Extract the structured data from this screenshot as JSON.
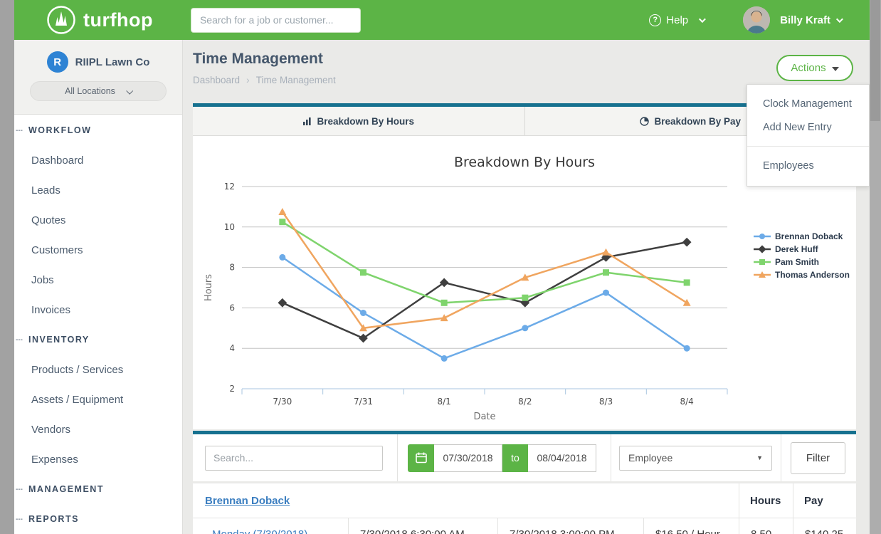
{
  "navbar": {
    "brand": "turfhop",
    "search_placeholder": "Search for a job or customer...",
    "help_label": "Help",
    "user_name": "Billy Kraft"
  },
  "sidebar": {
    "company": "RIIPL Lawn Co",
    "company_initial": "R",
    "location_filter": "All Locations",
    "sections": [
      {
        "label": "WORKFLOW",
        "items": [
          "Dashboard",
          "Leads",
          "Quotes",
          "Customers",
          "Jobs",
          "Invoices"
        ]
      },
      {
        "label": "INVENTORY",
        "items": [
          "Products / Services",
          "Assets / Equipment",
          "Vendors",
          "Expenses"
        ]
      },
      {
        "label": "MANAGEMENT",
        "items": []
      },
      {
        "label": "REPORTS",
        "items": []
      }
    ]
  },
  "header": {
    "title": "Time Management",
    "breadcrumb": [
      "Dashboard",
      "Time Management"
    ],
    "actions_label": "Actions"
  },
  "actions_menu": {
    "groups": [
      [
        "Clock Management",
        "Add New Entry"
      ],
      [
        "Employees"
      ]
    ]
  },
  "tabs": [
    {
      "label": "Breakdown By Hours",
      "icon": "bar-chart-icon",
      "active": true
    },
    {
      "label": "Breakdown By Pay",
      "icon": "clock-icon",
      "active": false
    }
  ],
  "chart_data": {
    "type": "line",
    "title": "Breakdown By Hours",
    "xlabel": "Date",
    "ylabel": "Hours",
    "categories": [
      "7/30",
      "7/31",
      "8/1",
      "8/2",
      "8/3",
      "8/4"
    ],
    "series": [
      {
        "name": "Brennan Doback",
        "color": "#6cabe8",
        "marker": "circle",
        "values": [
          8.5,
          5.75,
          3.5,
          5,
          6.75,
          4
        ]
      },
      {
        "name": "Derek Huff",
        "color": "#3f3f3f",
        "marker": "diamond",
        "values": [
          6.25,
          4.5,
          7.25,
          6.25,
          8.5,
          9.25
        ]
      },
      {
        "name": "Pam Smith",
        "color": "#7fd46d",
        "marker": "square",
        "values": [
          10.25,
          7.75,
          6.25,
          6.5,
          7.75,
          7.25
        ]
      },
      {
        "name": "Thomas Anderson",
        "color": "#f0a55f",
        "marker": "triangle",
        "values": [
          10.75,
          5,
          5.5,
          7.5,
          8.75,
          6.25
        ]
      }
    ],
    "ylim": [
      2,
      12
    ],
    "ytick_step": 2,
    "grid": true,
    "legend_position": "right"
  },
  "filters": {
    "search_placeholder": "Search...",
    "date_from": "07/30/2018",
    "to_label": "to",
    "date_to": "08/04/2018",
    "employee_label": "Employee",
    "filter_button": "Filter"
  },
  "table": {
    "group_link": "Brennan Doback",
    "columns": [
      "Hours",
      "Pay"
    ],
    "rows": [
      {
        "toggle": "-",
        "day": "Monday (7/30/2018)",
        "start": "7/30/2018 6:30:00 AM",
        "end": "7/30/2018 3:00:00 PM",
        "rate": "$16.50 / Hour",
        "hours": "8.50",
        "pay": "$140.25"
      }
    ]
  },
  "colors": {
    "brand_green": "#5cb446",
    "teal_bar": "#16718f",
    "link_blue": "#3b7ec0",
    "navy_text": "#44566b"
  }
}
